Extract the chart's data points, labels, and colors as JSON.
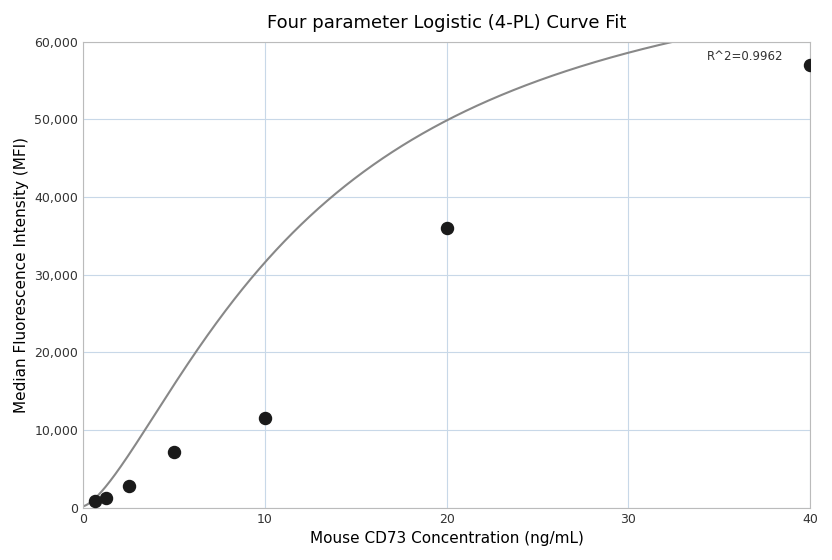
{
  "title": "Four parameter Logistic (4-PL) Curve Fit",
  "xlabel": "Mouse CD73 Concentration (ng/mL)",
  "ylabel": "Median Fluorescence Intensity (MFI)",
  "scatter_x": [
    0.625,
    1.25,
    2.5,
    5.0,
    10.0,
    20.0,
    40.0
  ],
  "scatter_y": [
    800,
    1300,
    2800,
    7200,
    11500,
    36000,
    57000
  ],
  "xlim": [
    0,
    40
  ],
  "ylim": [
    0,
    60000
  ],
  "yticks": [
    0,
    10000,
    20000,
    30000,
    40000,
    50000,
    60000
  ],
  "xticks": [
    0,
    10,
    20,
    30,
    40
  ],
  "r2_text": "R^2=0.9962",
  "curve_color": "#888888",
  "scatter_color": "#1a1a1a",
  "grid_color": "#c8d8e8",
  "bg_color": "#ffffff",
  "4pl_A": 200,
  "4pl_B": 1.45,
  "4pl_C": 12.5,
  "4pl_D": 75000
}
